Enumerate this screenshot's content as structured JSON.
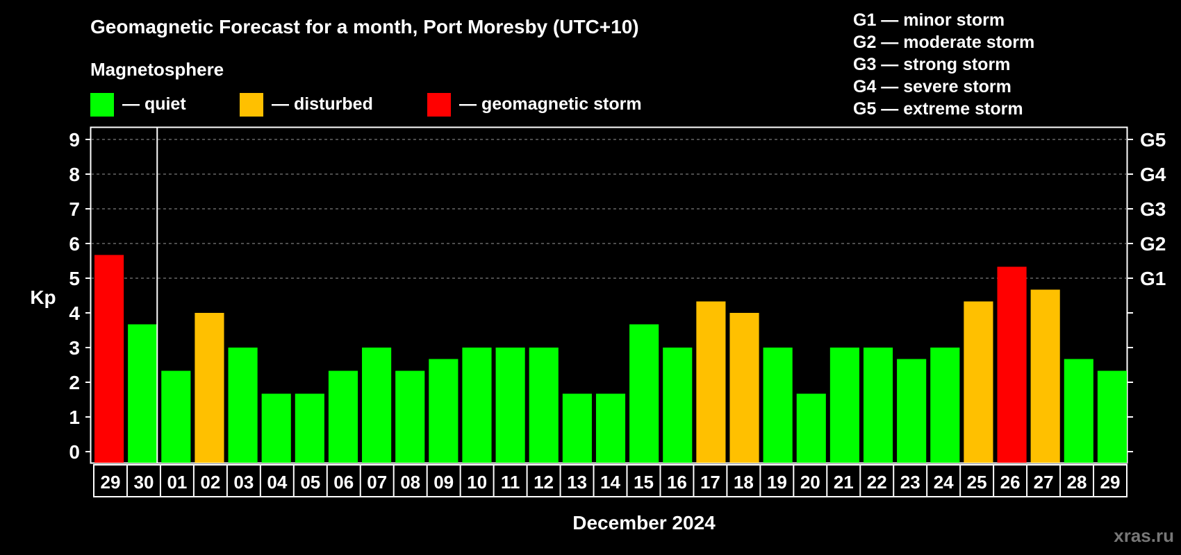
{
  "chart_data": {
    "type": "bar",
    "title": "Geomagnetic Forecast for a month, Port Moresby (UTC+10)",
    "subtitle": "Magnetosphere",
    "ylabel": "Kp",
    "xlabel": "December 2024",
    "ylim": [
      0,
      9
    ],
    "yticks": [
      "0",
      "1",
      "2",
      "3",
      "4",
      "5",
      "6",
      "7",
      "8",
      "9"
    ],
    "storm_levels": [
      {
        "label": "G1",
        "kp": 5
      },
      {
        "label": "G2",
        "kp": 6
      },
      {
        "label": "G3",
        "kp": 7
      },
      {
        "label": "G4",
        "kp": 8
      },
      {
        "label": "G5",
        "kp": 9
      }
    ],
    "storm_legend": [
      "G1 — minor storm",
      "G2 — moderate storm",
      "G3 — strong storm",
      "G4 — severe storm",
      "G5 — extreme storm"
    ],
    "status_legend": [
      {
        "key": "quiet",
        "label": "— quiet",
        "color": "#00ff00"
      },
      {
        "key": "disturbed",
        "label": "— disturbed",
        "color": "#ffc000"
      },
      {
        "key": "storm",
        "label": "— geomagnetic storm",
        "color": "#ff0000"
      }
    ],
    "grid": "dashed, Kp 5–9",
    "categories": [
      "29",
      "30",
      "01",
      "02",
      "03",
      "04",
      "05",
      "06",
      "07",
      "08",
      "09",
      "10",
      "11",
      "12",
      "13",
      "14",
      "15",
      "16",
      "17",
      "18",
      "19",
      "20",
      "21",
      "22",
      "23",
      "24",
      "25",
      "26",
      "27",
      "28",
      "29"
    ],
    "values": [
      5.67,
      3.67,
      2.33,
      4.0,
      3.0,
      1.67,
      1.67,
      2.33,
      3.0,
      2.33,
      2.67,
      3.0,
      3.0,
      3.0,
      1.67,
      1.67,
      3.67,
      3.0,
      4.33,
      4.0,
      3.0,
      1.67,
      3.0,
      3.0,
      2.67,
      3.0,
      4.33,
      5.33,
      4.67,
      2.67,
      2.33
    ],
    "status": [
      "storm",
      "quiet",
      "quiet",
      "disturbed",
      "quiet",
      "quiet",
      "quiet",
      "quiet",
      "quiet",
      "quiet",
      "quiet",
      "quiet",
      "quiet",
      "quiet",
      "quiet",
      "quiet",
      "quiet",
      "quiet",
      "disturbed",
      "disturbed",
      "quiet",
      "quiet",
      "quiet",
      "quiet",
      "quiet",
      "quiet",
      "disturbed",
      "storm",
      "disturbed",
      "quiet",
      "quiet"
    ],
    "month_separator_after_index": 1
  },
  "watermark": "xras.ru"
}
